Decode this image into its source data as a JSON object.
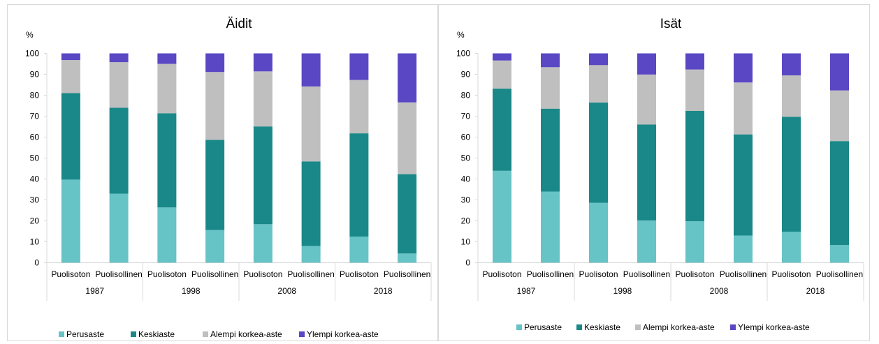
{
  "chart_data": [
    {
      "type": "bar",
      "stacked": true,
      "title": "Äidit",
      "ylabel": "%",
      "ylim": [
        0,
        100
      ],
      "yticks": [
        0,
        10,
        20,
        30,
        40,
        50,
        60,
        70,
        80,
        90,
        100
      ],
      "groups": [
        "1987",
        "1998",
        "2008",
        "2018"
      ],
      "categories": [
        "Puolisoton",
        "Puolisollinen",
        "Puolisoton",
        "Puolisollinen",
        "Puolisoton",
        "Puolisollinen",
        "Puolisoton",
        "Puolisollinen"
      ],
      "legend_position": "bottom",
      "series": [
        {
          "name": "Perusaste",
          "color": "#66c3c6",
          "values": [
            39.7,
            33.0,
            26.4,
            15.6,
            18.4,
            8.0,
            12.5,
            4.4
          ]
        },
        {
          "name": "Keskiaste",
          "color": "#1a8888",
          "values": [
            41.3,
            41.0,
            45.0,
            43.1,
            46.7,
            40.4,
            49.3,
            37.9
          ]
        },
        {
          "name": "Alempi korkea-aste",
          "color": "#bfbfbf",
          "values": [
            15.8,
            21.8,
            23.6,
            32.4,
            26.3,
            35.8,
            25.5,
            34.3
          ]
        },
        {
          "name": "Ylempi korkea-aste",
          "color": "#5a47c4",
          "values": [
            3.2,
            4.2,
            5.0,
            8.9,
            8.6,
            15.8,
            12.7,
            23.4
          ]
        }
      ]
    },
    {
      "type": "bar",
      "stacked": true,
      "title": "Isät",
      "ylabel": "%",
      "ylim": [
        0,
        100
      ],
      "yticks": [
        0,
        10,
        20,
        30,
        40,
        50,
        60,
        70,
        80,
        90,
        100
      ],
      "groups": [
        "1987",
        "1998",
        "2008",
        "2018"
      ],
      "categories": [
        "Puolisoton",
        "Puolisollinen",
        "Puolisoton",
        "Puolisollinen",
        "Puolisoton",
        "Puolisollinen",
        "Puolisoton",
        "Puolisollinen"
      ],
      "legend_position": "bottom",
      "series": [
        {
          "name": "Perusaste",
          "color": "#66c3c6",
          "values": [
            43.9,
            34.0,
            28.6,
            20.2,
            19.8,
            13.0,
            14.8,
            8.5
          ]
        },
        {
          "name": "Keskiaste",
          "color": "#1a8888",
          "values": [
            39.3,
            39.6,
            47.9,
            45.8,
            52.7,
            48.3,
            54.9,
            49.6
          ]
        },
        {
          "name": "Alempi korkea-aste",
          "color": "#bfbfbf",
          "values": [
            13.4,
            19.8,
            17.9,
            23.9,
            19.8,
            24.8,
            19.8,
            24.2
          ]
        },
        {
          "name": "Ylempi korkea-aste",
          "color": "#5a47c4",
          "values": [
            3.4,
            6.6,
            5.6,
            10.1,
            7.7,
            13.9,
            10.5,
            17.7
          ]
        }
      ]
    }
  ]
}
